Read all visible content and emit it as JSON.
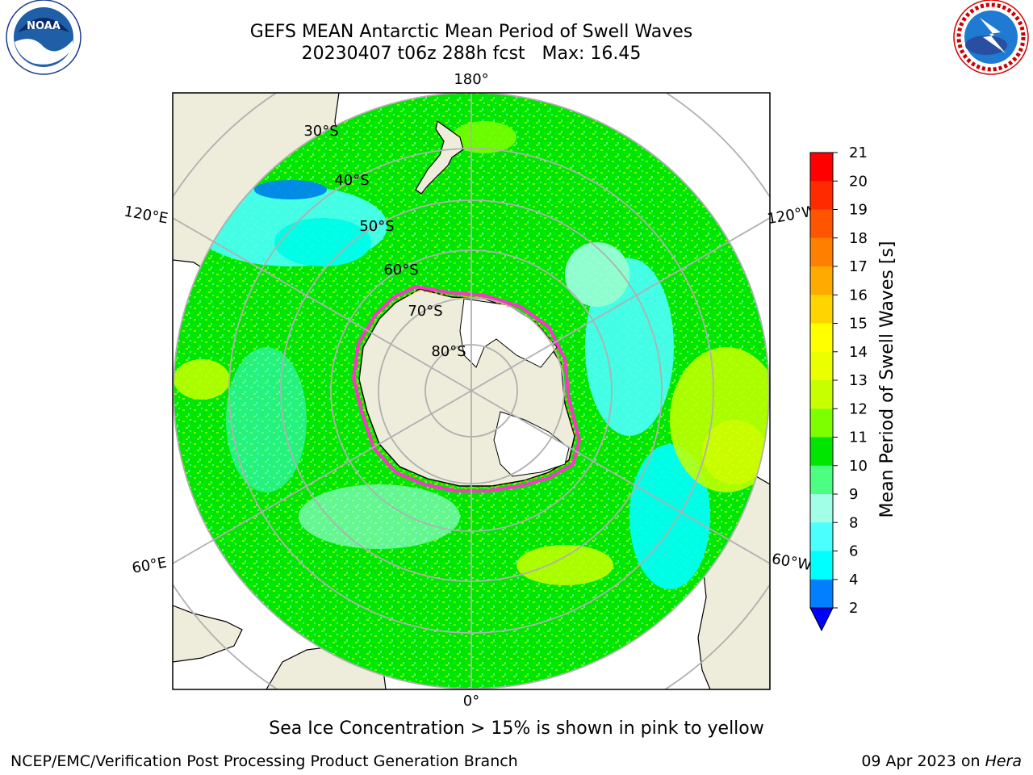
{
  "title": {
    "line1": "GEFS MEAN Antarctic Mean Period of Swell Waves",
    "line2": "20230407 t06z 288h fcst   Max: 16.45"
  },
  "map": {
    "projection": "south-polar-stereographic",
    "meridian_labels": [
      "180°",
      "120°E",
      "120°W",
      "60°E",
      "60°W",
      "0°"
    ],
    "latitude_labels": [
      "30°S",
      "40°S",
      "50°S",
      "60°S",
      "70°S",
      "80°S"
    ],
    "ocean_field": "mean swell period, mostly 9–14 s (green), cyan 6–9 s patches, yellow 13–15 s near South America",
    "colors": {
      "land": "#eeecda",
      "sea_ice_outline": [
        "#ff33cc",
        "#ffaa00"
      ],
      "grid": "#b0b0b0"
    }
  },
  "colorbar": {
    "label": "Mean Period of Swell Waves [s]",
    "ticks": [
      "21",
      "20",
      "19",
      "18",
      "17",
      "16",
      "15",
      "14",
      "13",
      "12",
      "11",
      "10",
      "9",
      "8",
      "6",
      "4",
      "2"
    ],
    "segments_top_to_bottom": [
      "#ff0000",
      "#ff2a00",
      "#ff5500",
      "#ff8000",
      "#ffaa00",
      "#ffd400",
      "#ffff00",
      "#ebff00",
      "#c8ff00",
      "#7dff00",
      "#00e600",
      "#4cff80",
      "#a0ffe6",
      "#4cffff",
      "#00ffff",
      "#0080ff"
    ],
    "extend_color": "#0000ff"
  },
  "note": "Sea Ice Concentration > 15% is shown in pink to yellow",
  "footer": {
    "left": "NCEP/EMC/Verification Post Processing Product Generation Branch",
    "right_date": "09 Apr 2023 on",
    "right_host": "Hera"
  },
  "logos": {
    "noaa": {
      "text": "NOAA",
      "ring_text": "NATIONAL OCEANIC AND ATMOSPHERIC ADMINISTRATION · U.S. DEPARTMENT OF COMMERCE"
    },
    "nws": {
      "ring_text": "NATIONAL WEATHER SERVICE"
    }
  }
}
